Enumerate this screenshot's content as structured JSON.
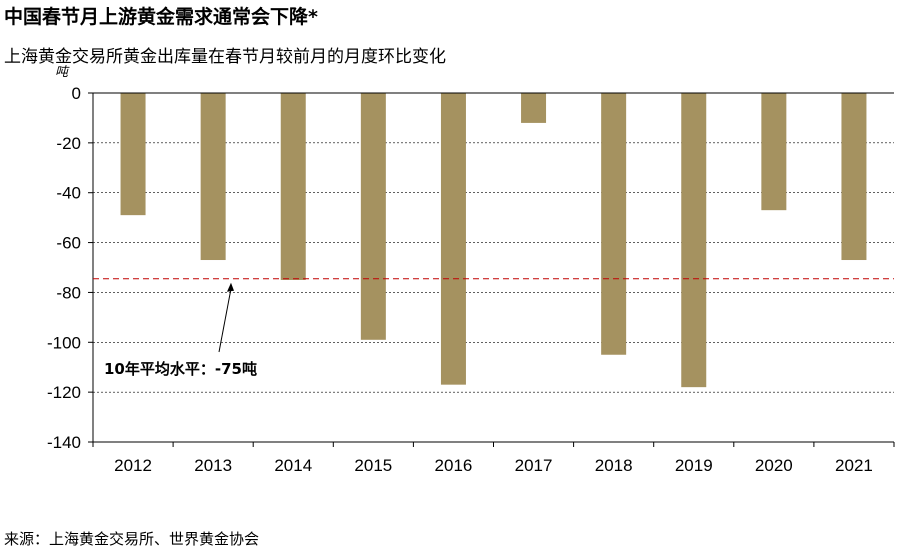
{
  "header": {
    "title": "中国春节月上游黄金需求通常会下降*",
    "subtitle": "上海黄金交易所黄金出库量在春节月较前月的月度环比变化"
  },
  "footer": {
    "source": "来源：上海黄金交易所、世界黄金协会"
  },
  "colors": {
    "bar": "#a59260",
    "reference_line": "#c00000",
    "grid": "#000000"
  },
  "chart_data": {
    "type": "bar",
    "title": "中国春节月上游黄金需求通常会下降*",
    "subtitle": "上海黄金交易所黄金出库量在春节月较前月的月度环比变化",
    "ylabel": "吨",
    "xlabel": "",
    "categories": [
      "2012",
      "2013",
      "2014",
      "2015",
      "2016",
      "2017",
      "2018",
      "2019",
      "2020",
      "2021"
    ],
    "values": [
      -49,
      -67,
      -75,
      -99,
      -117,
      -12,
      -105,
      -118,
      -47,
      -67
    ],
    "ylim": [
      -140,
      0
    ],
    "yticks": [
      0,
      -20,
      -40,
      -60,
      -80,
      -100,
      -120,
      -140
    ],
    "grid": "horizontal-dashed",
    "reference_line": {
      "value": -74.5,
      "label": "10年平均水平：-75吨"
    }
  }
}
